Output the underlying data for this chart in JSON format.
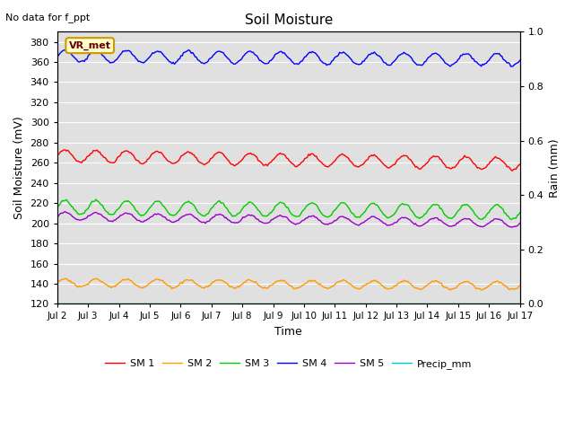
{
  "title": "Soil Moisture",
  "top_left_text": "No data for f_ppt",
  "xlabel": "Time",
  "ylabel_left": "Soil Moisture (mV)",
  "ylabel_right": "Rain (mm)",
  "ylim_left": [
    120,
    390
  ],
  "ylim_right": [
    0.0,
    1.0
  ],
  "yticks_left": [
    120,
    140,
    160,
    180,
    200,
    220,
    240,
    260,
    280,
    300,
    320,
    340,
    360,
    380
  ],
  "yticks_right": [
    0.0,
    0.2,
    0.4,
    0.6,
    0.8,
    1.0
  ],
  "n_days": 15,
  "xtick_labels": [
    "Jul 2",
    "Jul 3",
    "Jul 4",
    "Jul 5",
    "Jul 6",
    "Jul 7",
    "Jul 8",
    "Jul 9",
    "Jul 10",
    "Jul 11",
    "Jul 12",
    "Jul 13",
    "Jul 14",
    "Jul 15",
    "Jul 16",
    "Jul 17"
  ],
  "legend_labels": [
    "SM 1",
    "SM 2",
    "SM 3",
    "SM 4",
    "SM 5",
    "Precip_mm"
  ],
  "legend_colors": [
    "#ff0000",
    "#ff9900",
    "#00cc00",
    "#0000ff",
    "#9900cc",
    "#00cccc"
  ],
  "vr_met_box_color": "#ffffcc",
  "vr_met_border_color": "#cc9900",
  "vr_met_text_color": "#660000",
  "background_color": "#e0e0e0",
  "sm1_base": 267,
  "sm1_amp": 6,
  "sm1_trend": -8,
  "sm2_base": 141,
  "sm2_amp": 4,
  "sm2_trend": -3,
  "sm3_base": 216,
  "sm3_amp": 7,
  "sm3_trend": -5,
  "sm4_base": 366,
  "sm4_amp": 6,
  "sm4_trend": -4,
  "sm5_base": 207,
  "sm5_amp": 4,
  "sm5_trend": -7,
  "precip_value": 120,
  "figwidth": 6.4,
  "figheight": 4.8,
  "dpi": 100
}
